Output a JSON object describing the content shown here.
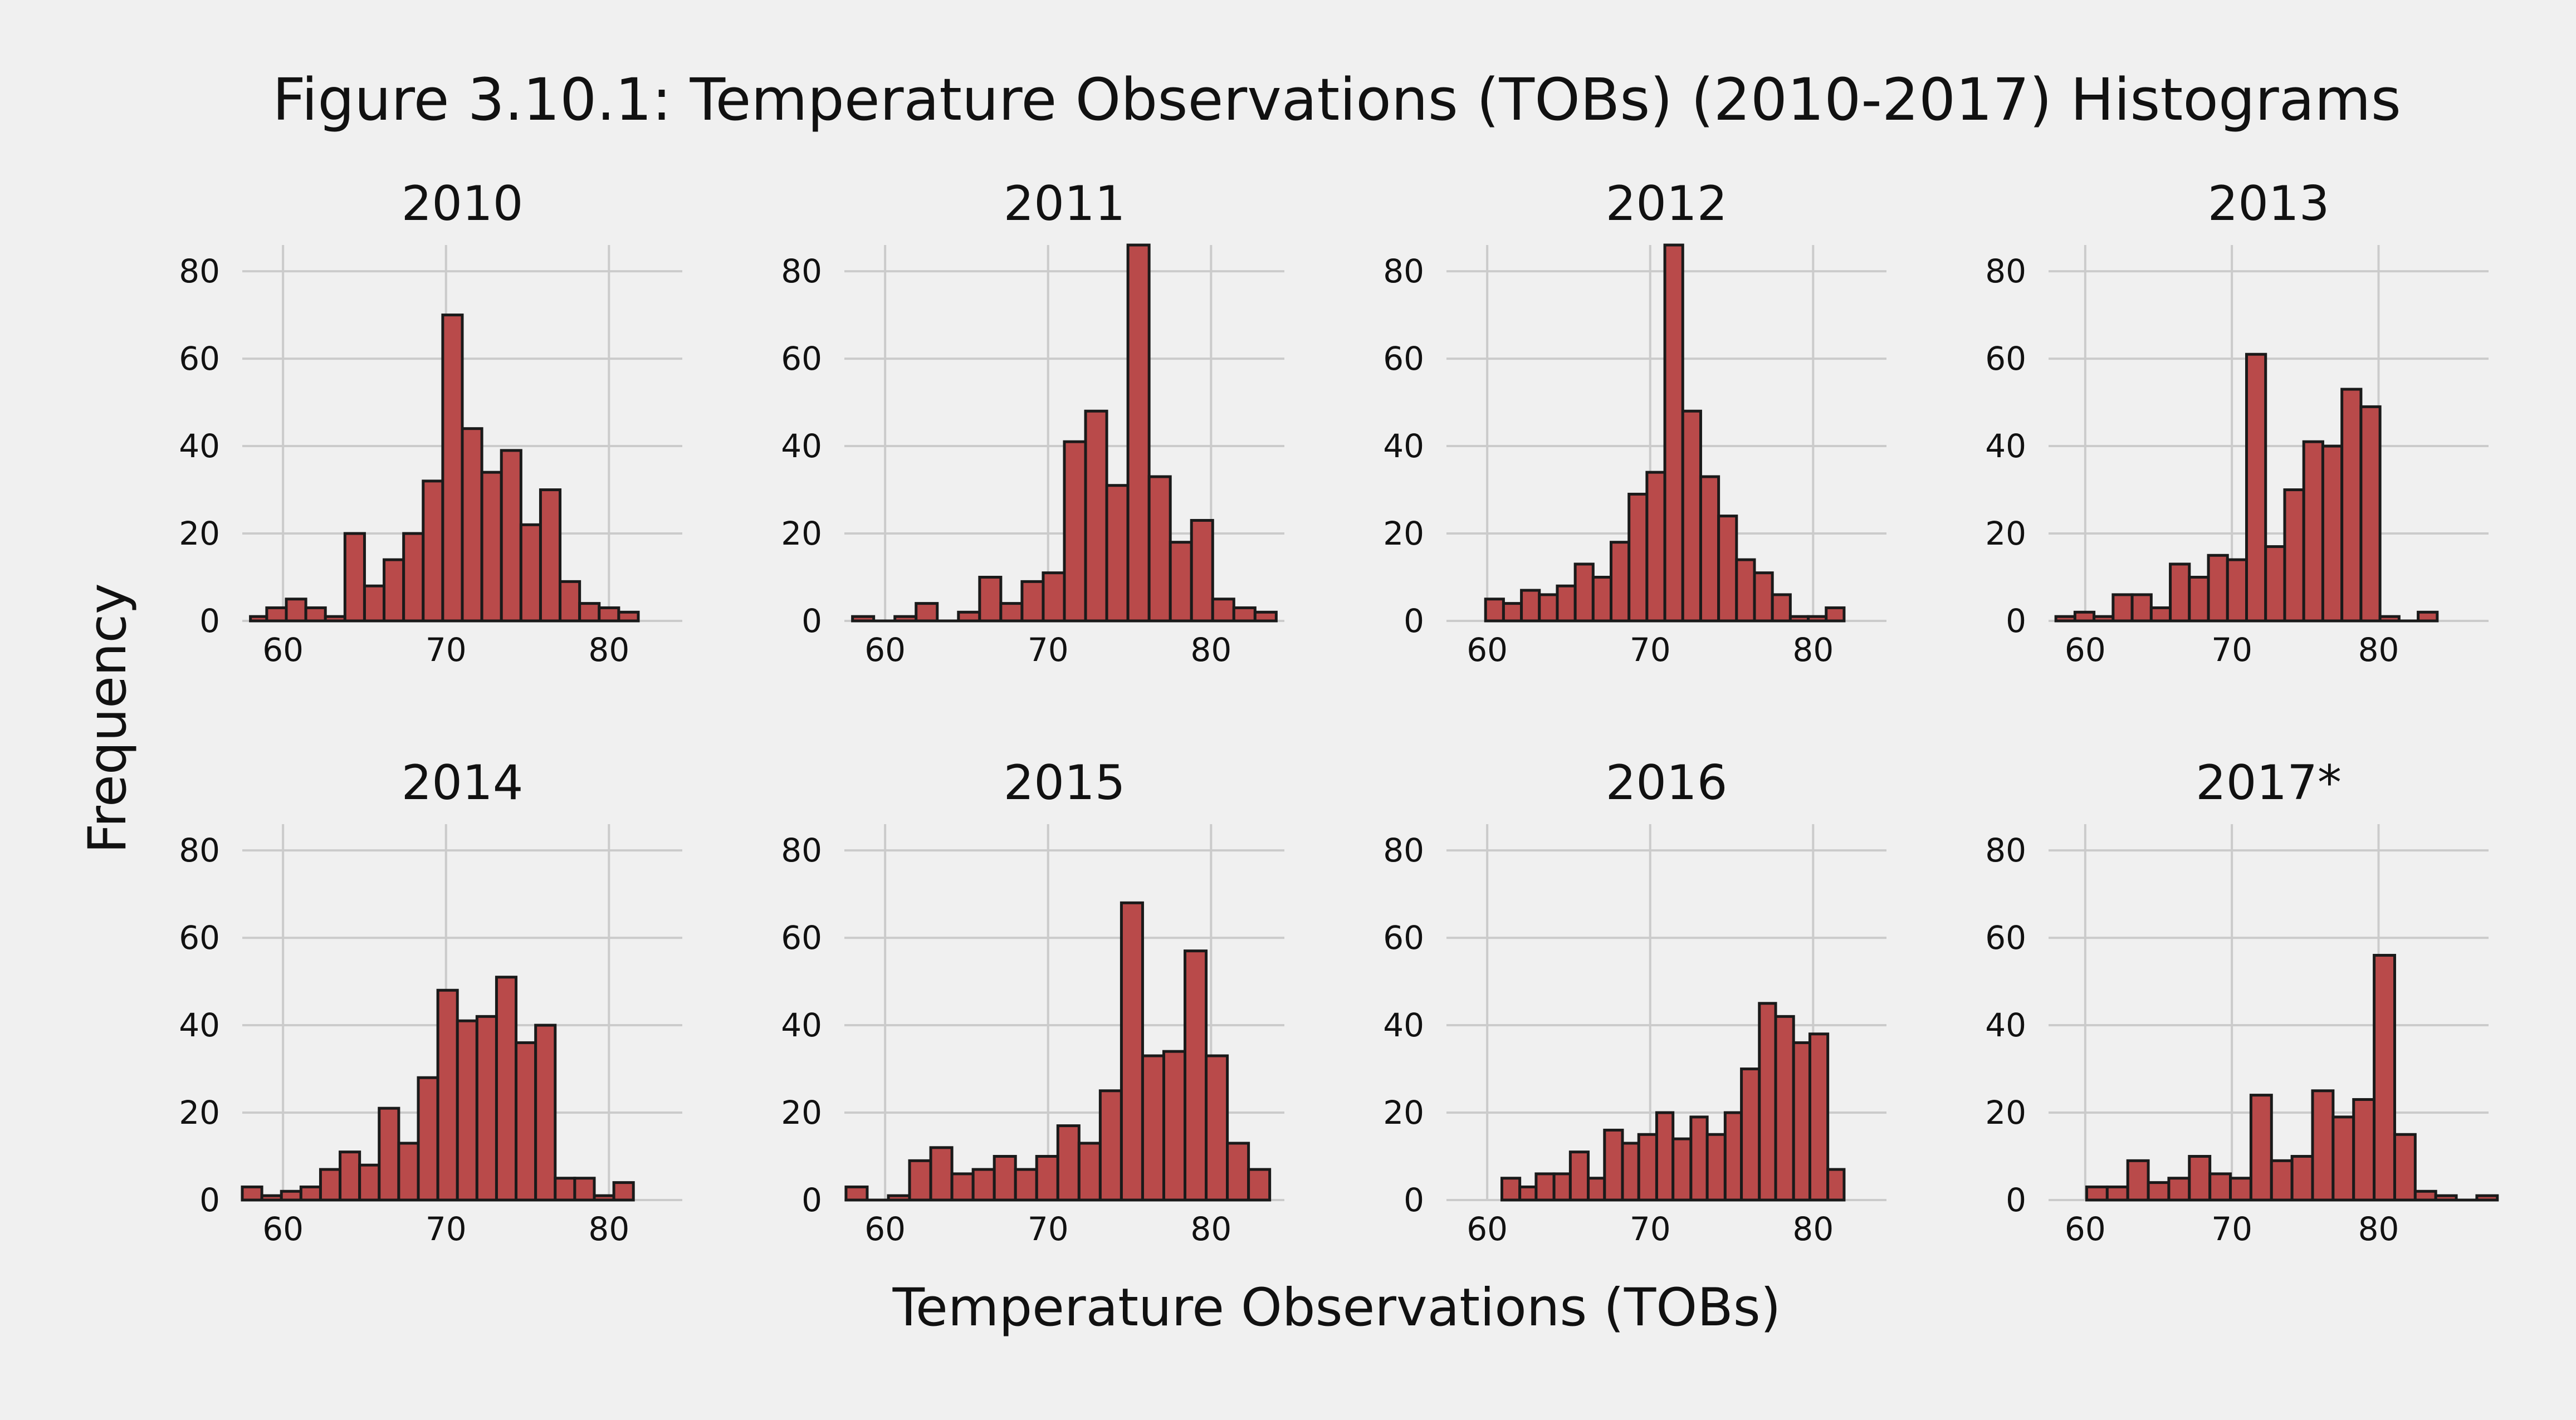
{
  "figure": {
    "title": "Figure 3.10.1: Temperature Observations (TOBs) (2010-2017) Histograms",
    "xlabel": "Temperature Observations (TOBs)",
    "ylabel": "Frequency",
    "bar_color": "#b94a4a",
    "edge_color": "#1a1a1a",
    "background": "#f0f0f0",
    "grid_color": "#cbcbcb"
  },
  "chart_data": [
    {
      "type": "bar",
      "title": "2010",
      "xlim": [
        57.5,
        84.5
      ],
      "ylim": [
        0,
        86
      ],
      "xticks": [
        60,
        70,
        80
      ],
      "yticks": [
        0,
        20,
        40,
        60,
        80
      ],
      "grid": true,
      "bins": [
        [
          58,
          59,
          1
        ],
        [
          59,
          60.2,
          3
        ],
        [
          60.2,
          61.4,
          5
        ],
        [
          61.4,
          62.6,
          3
        ],
        [
          62.6,
          63.8,
          1
        ],
        [
          63.8,
          65,
          20
        ],
        [
          65,
          66.2,
          8
        ],
        [
          66.2,
          67.4,
          14
        ],
        [
          67.4,
          68.6,
          20
        ],
        [
          68.6,
          69.8,
          32
        ],
        [
          69.8,
          71,
          70
        ],
        [
          71,
          72.2,
          44
        ],
        [
          72.2,
          73.4,
          34
        ],
        [
          73.4,
          74.6,
          39
        ],
        [
          74.6,
          75.8,
          22
        ],
        [
          75.8,
          77,
          30
        ],
        [
          77,
          78.2,
          9
        ],
        [
          78.2,
          79.4,
          4
        ],
        [
          79.4,
          80.6,
          3
        ],
        [
          80.6,
          81.8,
          2
        ]
      ]
    },
    {
      "type": "bar",
      "title": "2011",
      "xlim": [
        57.5,
        84.5
      ],
      "ylim": [
        0,
        86
      ],
      "xticks": [
        60,
        70,
        80
      ],
      "yticks": [
        0,
        20,
        40,
        60,
        80
      ],
      "grid": true,
      "bins": [
        [
          58,
          59.3,
          1
        ],
        [
          59.3,
          60.6,
          0
        ],
        [
          60.6,
          61.9,
          1
        ],
        [
          61.9,
          63.2,
          4
        ],
        [
          63.2,
          64.5,
          0
        ],
        [
          64.5,
          65.8,
          2
        ],
        [
          65.8,
          67.1,
          10
        ],
        [
          67.1,
          68.4,
          4
        ],
        [
          68.4,
          69.7,
          9
        ],
        [
          69.7,
          71,
          11
        ],
        [
          71,
          72.3,
          41
        ],
        [
          72.3,
          73.6,
          48
        ],
        [
          73.6,
          74.9,
          31
        ],
        [
          74.9,
          76.2,
          86
        ],
        [
          76.2,
          77.5,
          33
        ],
        [
          77.5,
          78.8,
          18
        ],
        [
          78.8,
          80.1,
          23
        ],
        [
          80.1,
          81.4,
          5
        ],
        [
          81.4,
          82.7,
          3
        ],
        [
          82.7,
          84,
          2
        ]
      ]
    },
    {
      "type": "bar",
      "title": "2012",
      "xlim": [
        57.5,
        84.5
      ],
      "ylim": [
        0,
        86
      ],
      "xticks": [
        60,
        70,
        80
      ],
      "yticks": [
        0,
        20,
        40,
        60,
        80
      ],
      "grid": true,
      "bins": [
        [
          59.9,
          61,
          5
        ],
        [
          61,
          62.1,
          4
        ],
        [
          62.1,
          63.2,
          7
        ],
        [
          63.2,
          64.3,
          6
        ],
        [
          64.3,
          65.4,
          8
        ],
        [
          65.4,
          66.5,
          13
        ],
        [
          66.5,
          67.6,
          10
        ],
        [
          67.6,
          68.7,
          18
        ],
        [
          68.7,
          69.8,
          29
        ],
        [
          69.8,
          70.9,
          34
        ],
        [
          70.9,
          72,
          86
        ],
        [
          72,
          73.1,
          48
        ],
        [
          73.1,
          74.2,
          33
        ],
        [
          74.2,
          75.3,
          24
        ],
        [
          75.3,
          76.4,
          14
        ],
        [
          76.4,
          77.5,
          11
        ],
        [
          77.5,
          78.6,
          6
        ],
        [
          78.6,
          79.7,
          1
        ],
        [
          79.7,
          80.8,
          1
        ],
        [
          80.8,
          81.9,
          3
        ]
      ]
    },
    {
      "type": "bar",
      "title": "2013",
      "xlim": [
        57.5,
        87.5
      ],
      "ylim": [
        0,
        86
      ],
      "xticks": [
        60,
        70,
        80
      ],
      "yticks": [
        0,
        20,
        40,
        60,
        80
      ],
      "grid": true,
      "bins": [
        [
          58,
          59.3,
          1
        ],
        [
          59.3,
          60.6,
          2
        ],
        [
          60.6,
          61.9,
          1
        ],
        [
          61.9,
          63.2,
          6
        ],
        [
          63.2,
          64.5,
          6
        ],
        [
          64.5,
          65.8,
          3
        ],
        [
          65.8,
          67.1,
          13
        ],
        [
          67.1,
          68.4,
          10
        ],
        [
          68.4,
          69.7,
          15
        ],
        [
          69.7,
          71,
          14
        ],
        [
          71,
          72.3,
          61
        ],
        [
          72.3,
          73.6,
          17
        ],
        [
          73.6,
          74.9,
          30
        ],
        [
          74.9,
          76.2,
          41
        ],
        [
          76.2,
          77.5,
          40
        ],
        [
          77.5,
          78.8,
          53
        ],
        [
          78.8,
          80.1,
          49
        ],
        [
          80.1,
          81.4,
          1
        ],
        [
          81.4,
          82.7,
          0
        ],
        [
          82.7,
          84,
          2
        ]
      ]
    },
    {
      "type": "bar",
      "title": "2014",
      "xlim": [
        57.5,
        84.5
      ],
      "ylim": [
        0,
        86
      ],
      "xticks": [
        60,
        70,
        80
      ],
      "yticks": [
        0,
        20,
        40,
        60,
        80
      ],
      "grid": true,
      "bins": [
        [
          57.5,
          58.7,
          3
        ],
        [
          58.7,
          59.9,
          1
        ],
        [
          59.9,
          61.1,
          2
        ],
        [
          61.1,
          62.3,
          3
        ],
        [
          62.3,
          63.5,
          7
        ],
        [
          63.5,
          64.7,
          11
        ],
        [
          64.7,
          65.9,
          8
        ],
        [
          65.9,
          67.1,
          21
        ],
        [
          67.1,
          68.3,
          13
        ],
        [
          68.3,
          69.5,
          28
        ],
        [
          69.5,
          70.7,
          48
        ],
        [
          70.7,
          71.9,
          41
        ],
        [
          71.9,
          73.1,
          42
        ],
        [
          73.1,
          74.3,
          51
        ],
        [
          74.3,
          75.5,
          36
        ],
        [
          75.5,
          76.7,
          40
        ],
        [
          76.7,
          77.9,
          5
        ],
        [
          77.9,
          79.1,
          5
        ],
        [
          79.1,
          80.3,
          1
        ],
        [
          80.3,
          81.5,
          4
        ]
      ]
    },
    {
      "type": "bar",
      "title": "2015",
      "xlim": [
        57.5,
        84.5
      ],
      "ylim": [
        0,
        86
      ],
      "xticks": [
        60,
        70,
        80
      ],
      "yticks": [
        0,
        20,
        40,
        60,
        80
      ],
      "grid": true,
      "bins": [
        [
          57.6,
          58.9,
          3
        ],
        [
          58.9,
          60.2,
          0
        ],
        [
          60.2,
          61.5,
          1
        ],
        [
          61.5,
          62.8,
          9
        ],
        [
          62.8,
          64.1,
          12
        ],
        [
          64.1,
          65.4,
          6
        ],
        [
          65.4,
          66.7,
          7
        ],
        [
          66.7,
          68,
          10
        ],
        [
          68,
          69.3,
          7
        ],
        [
          69.3,
          70.6,
          10
        ],
        [
          70.6,
          71.9,
          17
        ],
        [
          71.9,
          73.2,
          13
        ],
        [
          73.2,
          74.5,
          25
        ],
        [
          74.5,
          75.8,
          68
        ],
        [
          75.8,
          77.1,
          33
        ],
        [
          77.1,
          78.4,
          34
        ],
        [
          78.4,
          79.7,
          57
        ],
        [
          79.7,
          81,
          33
        ],
        [
          81,
          82.3,
          13
        ],
        [
          82.3,
          83.6,
          7
        ]
      ]
    },
    {
      "type": "bar",
      "title": "2016",
      "xlim": [
        57.5,
        84.5
      ],
      "ylim": [
        0,
        86
      ],
      "xticks": [
        60,
        70,
        80
      ],
      "yticks": [
        0,
        20,
        40,
        60,
        80
      ],
      "grid": true,
      "bins": [
        [
          60.9,
          62,
          5
        ],
        [
          62,
          63,
          3
        ],
        [
          63,
          64.1,
          6
        ],
        [
          64.1,
          65.1,
          6
        ],
        [
          65.1,
          66.2,
          11
        ],
        [
          66.2,
          67.2,
          5
        ],
        [
          67.2,
          68.3,
          16
        ],
        [
          68.3,
          69.3,
          13
        ],
        [
          69.3,
          70.4,
          15
        ],
        [
          70.4,
          71.4,
          20
        ],
        [
          71.4,
          72.5,
          14
        ],
        [
          72.5,
          73.5,
          19
        ],
        [
          73.5,
          74.6,
          15
        ],
        [
          74.6,
          75.6,
          20
        ],
        [
          75.6,
          76.7,
          30
        ],
        [
          76.7,
          77.7,
          45
        ],
        [
          77.7,
          78.8,
          42
        ],
        [
          78.8,
          79.8,
          36
        ],
        [
          79.8,
          80.9,
          38
        ],
        [
          80.9,
          81.9,
          7
        ]
      ]
    },
    {
      "type": "bar",
      "title": "2017*",
      "xlim": [
        57.5,
        87.5
      ],
      "ylim": [
        0,
        86
      ],
      "xticks": [
        60,
        70,
        80
      ],
      "yticks": [
        0,
        20,
        40,
        60,
        80
      ],
      "grid": true,
      "bins": [
        [
          60.1,
          61.5,
          3
        ],
        [
          61.5,
          62.9,
          3
        ],
        [
          62.9,
          64.3,
          9
        ],
        [
          64.3,
          65.7,
          4
        ],
        [
          65.7,
          67.1,
          5
        ],
        [
          67.1,
          68.5,
          10
        ],
        [
          68.5,
          69.9,
          6
        ],
        [
          69.9,
          71.3,
          5
        ],
        [
          71.3,
          72.7,
          24
        ],
        [
          72.7,
          74.1,
          9
        ],
        [
          74.1,
          75.5,
          10
        ],
        [
          75.5,
          76.9,
          25
        ],
        [
          76.9,
          78.3,
          19
        ],
        [
          78.3,
          79.7,
          23
        ],
        [
          79.7,
          81.1,
          56
        ],
        [
          81.1,
          82.5,
          15
        ],
        [
          82.5,
          83.9,
          2
        ],
        [
          83.9,
          85.3,
          1
        ],
        [
          85.3,
          86.7,
          0
        ],
        [
          86.7,
          88.1,
          1
        ]
      ]
    }
  ]
}
